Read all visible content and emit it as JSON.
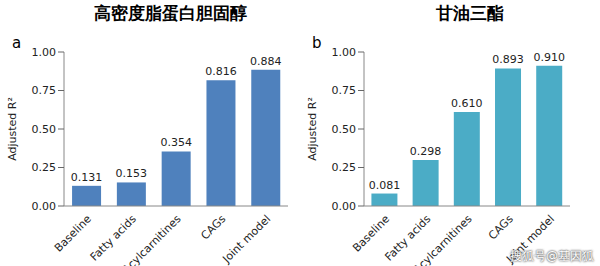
{
  "watermark": "搜狐号@基因狐",
  "chart_data": [
    {
      "type": "bar",
      "title": "高密度脂蛋白胆固醇",
      "panel_label": "a",
      "y_label": "Adjusted R²",
      "categories": [
        "Baseline",
        "Fatty acids",
        "Acylcarnitines",
        "CAGs",
        "Joint model"
      ],
      "values": [
        0.131,
        0.153,
        0.354,
        0.816,
        0.884
      ],
      "value_labels": [
        "0.131",
        "0.153",
        "0.354",
        "0.816",
        "0.884"
      ],
      "data_labels": true,
      "color": "#4f81bd",
      "ylim": [
        0,
        1
      ],
      "yticks": [
        {
          "value": 0,
          "label": "0.00"
        },
        {
          "value": 0.25,
          "label": "0.25"
        },
        {
          "value": 0.5,
          "label": "0.50"
        },
        {
          "value": 0.75,
          "label": "0.75"
        },
        {
          "value": 1,
          "label": "1.00"
        }
      ],
      "grid": false
    },
    {
      "type": "bar",
      "title": "甘油三酯",
      "panel_label": "b",
      "y_label": "Adjusted R²",
      "categories": [
        "Baseline",
        "Fatty acids",
        "Acylcarnitines",
        "CAGs",
        "Joint model"
      ],
      "values": [
        0.081,
        0.298,
        0.61,
        0.893,
        0.91
      ],
      "value_labels": [
        "0.081",
        "0.298",
        "0.610",
        "0.893",
        "0.910"
      ],
      "data_labels": true,
      "color": "#4bacc6",
      "ylim": [
        0,
        1
      ],
      "yticks": [
        {
          "value": 0,
          "label": "0.00"
        },
        {
          "value": 0.25,
          "label": "0.25"
        },
        {
          "value": 0.5,
          "label": "0.50"
        },
        {
          "value": 0.75,
          "label": "0.75"
        },
        {
          "value": 1,
          "label": "1.00"
        }
      ],
      "grid": false
    }
  ]
}
